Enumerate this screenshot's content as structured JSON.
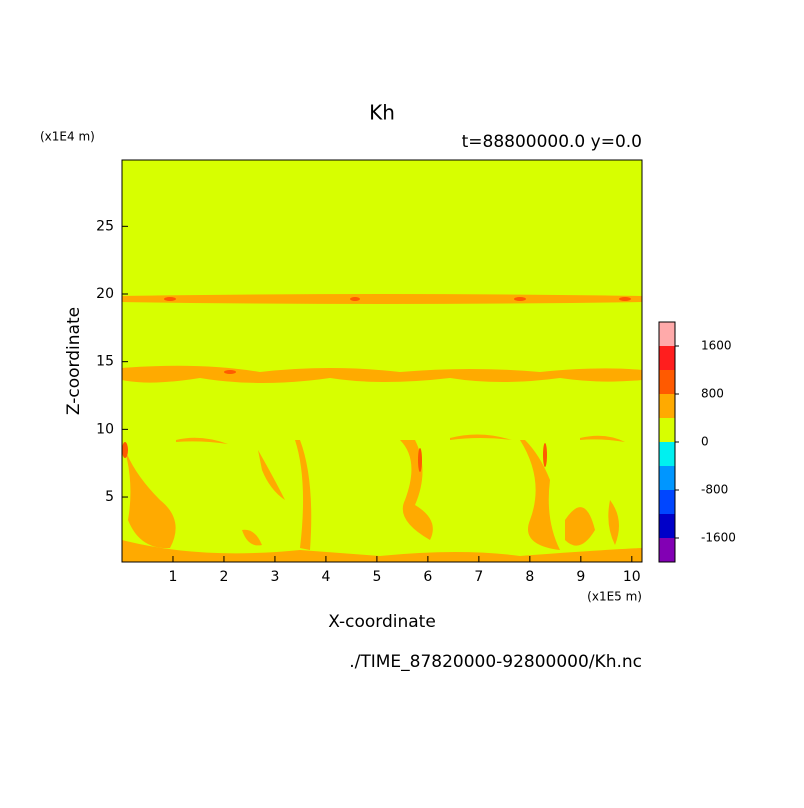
{
  "chart_data": {
    "type": "contour",
    "title": "Kh",
    "subtitle": "t=88800000.0 y=0.0",
    "x_label": "X-coordinate",
    "y_label": "Z-coordinate",
    "x_unit": "(x1E5 m)",
    "y_unit": "(x1E4 m)",
    "source": "./TIME_87820000-92800000/Kh.nc",
    "xlim": [
      0,
      10.2
    ],
    "xticks": [
      1,
      2,
      3,
      4,
      5,
      6,
      7,
      8,
      9,
      10
    ],
    "ylim": [
      0.2,
      29.9
    ],
    "yticks": [
      5,
      10,
      15,
      20,
      25
    ],
    "levels": [
      -2000,
      -1600,
      -1200,
      -800,
      -400,
      0,
      400,
      800,
      1200,
      1600,
      2000
    ],
    "colors": [
      "#8200b4",
      "#0000c8",
      "#0046ff",
      "#0096ff",
      "#00f0f0",
      "#d7ff00",
      "#ffaa00",
      "#ff5a00",
      "#ff1e1e",
      "#ffaaaa"
    ],
    "colorbar_ticks": [
      -1600,
      -800,
      0,
      800,
      1600
    ]
  }
}
